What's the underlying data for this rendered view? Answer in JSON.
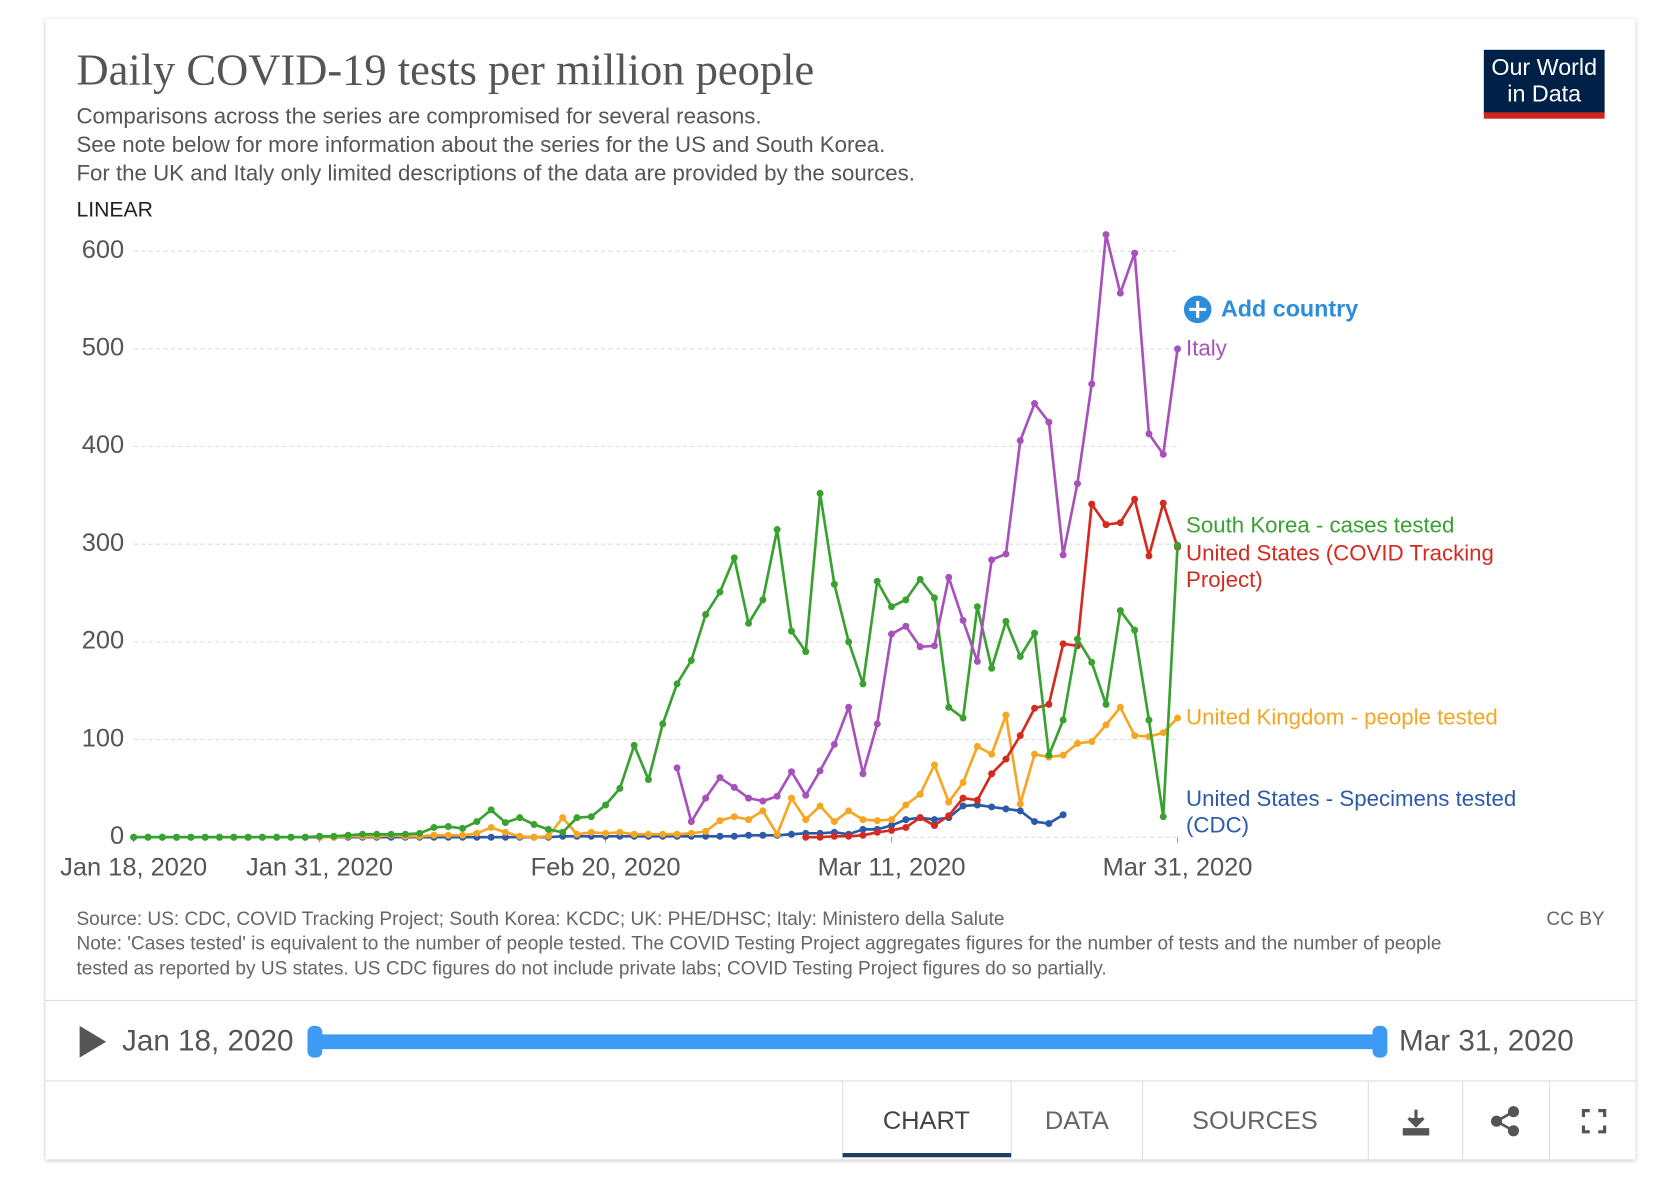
{
  "chart_data": {
    "type": "line",
    "title": "Daily COVID-19 tests per million people",
    "subtitle": [
      "Comparisons across the series are compromised for several reasons.",
      "See note below for more information about the series for the US and South Korea.",
      "For the UK and Italy only limited descriptions of the data are provided by the sources."
    ],
    "source": "Source: US: CDC, COVID Tracking Project; South Korea: KCDC; UK: PHE/DHSC; Italy: Ministero della Salute",
    "note": "Note: 'Cases tested' is equivalent to the number of people tested. The COVID Testing Project aggregates figures for the number of tests and the number of people tested as reported by US states. US CDC figures do not include private labs; COVID Testing Project figures do so partially.",
    "license": "CC BY",
    "scale_label": "LINEAR",
    "x": [
      "2020-01-18",
      "2020-01-19",
      "2020-01-20",
      "2020-01-21",
      "2020-01-22",
      "2020-01-23",
      "2020-01-24",
      "2020-01-25",
      "2020-01-26",
      "2020-01-27",
      "2020-01-28",
      "2020-01-29",
      "2020-01-30",
      "2020-01-31",
      "2020-02-01",
      "2020-02-02",
      "2020-02-03",
      "2020-02-04",
      "2020-02-05",
      "2020-02-06",
      "2020-02-07",
      "2020-02-08",
      "2020-02-09",
      "2020-02-10",
      "2020-02-11",
      "2020-02-12",
      "2020-02-13",
      "2020-02-14",
      "2020-02-15",
      "2020-02-16",
      "2020-02-17",
      "2020-02-18",
      "2020-02-19",
      "2020-02-20",
      "2020-02-21",
      "2020-02-22",
      "2020-02-23",
      "2020-02-24",
      "2020-02-25",
      "2020-02-26",
      "2020-02-27",
      "2020-02-28",
      "2020-02-29",
      "2020-03-01",
      "2020-03-02",
      "2020-03-03",
      "2020-03-04",
      "2020-03-05",
      "2020-03-06",
      "2020-03-07",
      "2020-03-08",
      "2020-03-09",
      "2020-03-10",
      "2020-03-11",
      "2020-03-12",
      "2020-03-13",
      "2020-03-14",
      "2020-03-15",
      "2020-03-16",
      "2020-03-17",
      "2020-03-18",
      "2020-03-19",
      "2020-03-20",
      "2020-03-21",
      "2020-03-22",
      "2020-03-23",
      "2020-03-24",
      "2020-03-25",
      "2020-03-26",
      "2020-03-27",
      "2020-03-28",
      "2020-03-29",
      "2020-03-30",
      "2020-03-31"
    ],
    "xlim": [
      "2020-01-18",
      "2020-03-31"
    ],
    "xticks": [
      {
        "value": "2020-01-18",
        "label": "Jan 18, 2020"
      },
      {
        "value": "2020-01-31",
        "label": "Jan 31, 2020"
      },
      {
        "value": "2020-02-20",
        "label": "Feb 20, 2020"
      },
      {
        "value": "2020-03-11",
        "label": "Mar 11, 2020"
      },
      {
        "value": "2020-03-31",
        "label": "Mar 31, 2020"
      }
    ],
    "ylim": [
      0,
      600
    ],
    "yticks": [
      0,
      100,
      200,
      300,
      400,
      500,
      600
    ],
    "grid": true,
    "series": [
      {
        "name": "Italy",
        "color": "#a652ba",
        "values": [
          null,
          null,
          null,
          null,
          null,
          null,
          null,
          null,
          null,
          null,
          null,
          null,
          null,
          null,
          null,
          null,
          null,
          null,
          null,
          null,
          null,
          null,
          null,
          null,
          null,
          null,
          null,
          null,
          null,
          null,
          null,
          null,
          null,
          null,
          null,
          null,
          null,
          null,
          71,
          16,
          40,
          61,
          51,
          40,
          37,
          42,
          67,
          43,
          68,
          95,
          133,
          65,
          116,
          208,
          216,
          195,
          196,
          266,
          222,
          180,
          284,
          290,
          406,
          444,
          425,
          289,
          362,
          464,
          617,
          557,
          598,
          413,
          392,
          500
        ]
      },
      {
        "name": "South Korea - cases tested",
        "color": "#38a130",
        "values": [
          0,
          0,
          0,
          0,
          0,
          0,
          0,
          0,
          0,
          0,
          0,
          0,
          0,
          1,
          1,
          2,
          3,
          3,
          3,
          3,
          4,
          10,
          11,
          9,
          16,
          28,
          15,
          20,
          13,
          8,
          5,
          20,
          21,
          33,
          50,
          94,
          59,
          116,
          157,
          181,
          228,
          251,
          286,
          219,
          243,
          315,
          211,
          190,
          352,
          259,
          200,
          157,
          262,
          236,
          243,
          264,
          245,
          133,
          122,
          236,
          173,
          221,
          185,
          209,
          84,
          120,
          203,
          179,
          136,
          232,
          212,
          120,
          21,
          299
        ]
      },
      {
        "name": "United States (COVID Tracking Project)",
        "color": "#d42b21",
        "values": [
          null,
          null,
          null,
          null,
          null,
          null,
          null,
          null,
          null,
          null,
          null,
          null,
          null,
          null,
          null,
          null,
          null,
          null,
          null,
          null,
          null,
          null,
          null,
          null,
          null,
          null,
          null,
          null,
          null,
          null,
          null,
          null,
          null,
          null,
          null,
          null,
          null,
          null,
          null,
          null,
          null,
          null,
          null,
          null,
          null,
          null,
          null,
          0,
          0,
          1,
          1,
          2,
          5,
          7,
          10,
          20,
          12,
          22,
          40,
          38,
          65,
          80,
          104,
          132,
          136,
          198,
          196,
          341,
          320,
          322,
          346,
          288,
          342,
          297
        ]
      },
      {
        "name": "United Kingdom - people tested",
        "color": "#f5a623",
        "values": [
          null,
          null,
          null,
          null,
          null,
          null,
          null,
          null,
          null,
          null,
          null,
          null,
          null,
          0,
          0,
          1,
          1,
          1,
          2,
          1,
          1,
          2,
          2,
          2,
          4,
          10,
          5,
          1,
          0,
          1,
          20,
          3,
          5,
          4,
          5,
          3,
          3,
          3,
          3,
          4,
          6,
          17,
          21,
          18,
          27,
          3,
          40,
          18,
          32,
          16,
          27,
          18,
          17,
          18,
          33,
          44,
          74,
          36,
          56,
          93,
          85,
          125,
          34,
          85,
          82,
          84,
          96,
          98,
          115,
          133,
          104,
          103,
          107,
          122
        ]
      },
      {
        "name": "United States - Specimens tested (CDC)",
        "color": "#2d5aa8",
        "values": [
          0,
          0,
          0,
          0,
          0,
          0,
          0,
          0,
          0,
          0,
          0,
          0,
          0,
          0,
          0,
          0,
          0,
          0,
          0,
          0,
          0,
          0,
          0,
          0,
          0,
          0,
          0,
          0,
          0,
          0,
          1,
          1,
          1,
          1,
          1,
          1,
          1,
          1,
          1,
          1,
          1,
          1,
          1,
          2,
          2,
          2,
          3,
          4,
          4,
          5,
          3,
          8,
          8,
          12,
          18,
          20,
          18,
          20,
          32,
          33,
          31,
          29,
          27,
          16,
          14,
          23,
          null,
          null,
          null,
          null,
          null,
          null,
          null,
          null
        ]
      }
    ]
  },
  "ui": {
    "logo": [
      "Our World",
      "in Data"
    ],
    "add_country": "Add country",
    "timeline": {
      "start": "Jan 18, 2020",
      "end": "Mar 31, 2020"
    },
    "tabs": [
      "CHART",
      "DATA",
      "SOURCES"
    ]
  }
}
